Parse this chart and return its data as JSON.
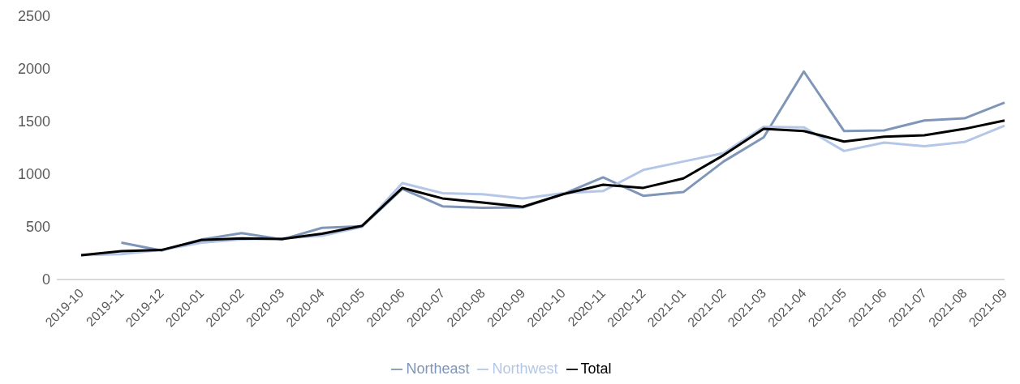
{
  "chart_data": {
    "type": "line",
    "categories": [
      "2019-10",
      "2019-11",
      "2019-12",
      "2020-01",
      "2020-02",
      "2020-03",
      "2020-04",
      "2020-05",
      "2020-06",
      "2020-07",
      "2020-08",
      "2020-09",
      "2020-10",
      "2020-11",
      "2020-12",
      "2021-01",
      "2021-02",
      "2021-03",
      "2021-04",
      "2021-05",
      "2021-06",
      "2021-07",
      "2021-08",
      "2021-09"
    ],
    "series": [
      {
        "name": "Northeast",
        "color": "#7f96b8",
        "values": [
          null,
          350,
          275,
          380,
          440,
          380,
          490,
          505,
          860,
          695,
          680,
          685,
          810,
          970,
          795,
          830,
          1120,
          1350,
          1975,
          1410,
          1415,
          1510,
          1530,
          1680
        ]
      },
      {
        "name": "Northwest",
        "color": "#b4c7e7",
        "values": [
          230,
          240,
          280,
          350,
          380,
          390,
          415,
          500,
          915,
          820,
          810,
          770,
          820,
          840,
          1040,
          1120,
          1200,
          1450,
          1445,
          1220,
          1300,
          1265,
          1305,
          1460
        ]
      },
      {
        "name": "Total",
        "color": "#000000",
        "values": [
          230,
          270,
          280,
          375,
          390,
          385,
          435,
          510,
          870,
          770,
          730,
          690,
          810,
          900,
          870,
          960,
          1180,
          1430,
          1410,
          1310,
          1355,
          1370,
          1430,
          1510
        ]
      }
    ],
    "ylim": [
      0,
      2500
    ],
    "yticks": [
      0,
      500,
      1000,
      1500,
      2000,
      2500
    ],
    "grid": false,
    "legend": "bottom",
    "marker": "none",
    "line_style": "solid"
  }
}
